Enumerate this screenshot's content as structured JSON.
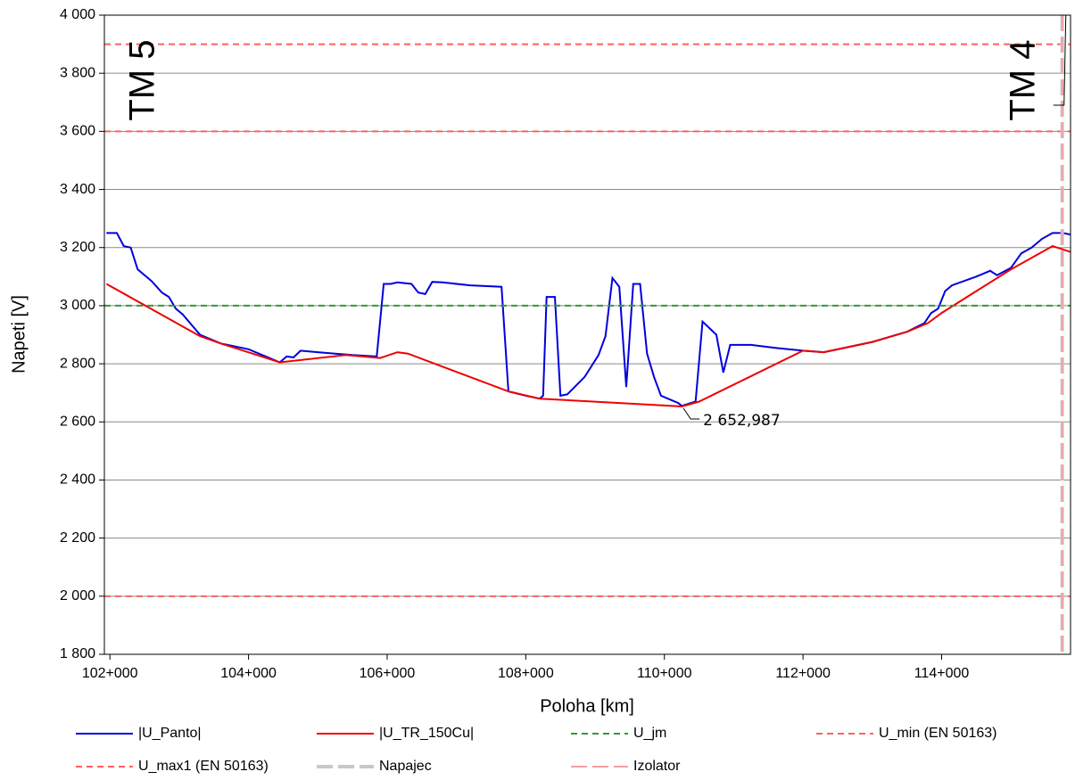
{
  "chart_data": {
    "type": "line",
    "xlabel": "Poloha [km]",
    "ylabel": "Napeti [V]",
    "xlim": [
      101.92,
      115.86
    ],
    "ylim": [
      1800,
      4000
    ],
    "xticks": [
      {
        "value": 102,
        "label": "102+000"
      },
      {
        "value": 104,
        "label": "104+000"
      },
      {
        "value": 106,
        "label": "106+000"
      },
      {
        "value": 108,
        "label": "108+000"
      },
      {
        "value": 110,
        "label": "110+000"
      },
      {
        "value": 112,
        "label": "112+000"
      },
      {
        "value": 114,
        "label": "114+000"
      }
    ],
    "yticks": [
      {
        "value": 1800,
        "label": "1 800"
      },
      {
        "value": 2000,
        "label": "2 000"
      },
      {
        "value": 2200,
        "label": "2 200"
      },
      {
        "value": 2400,
        "label": "2 400"
      },
      {
        "value": 2600,
        "label": "2 600"
      },
      {
        "value": 2800,
        "label": "2 800"
      },
      {
        "value": 3000,
        "label": "3 000"
      },
      {
        "value": 3200,
        "label": "3 200"
      },
      {
        "value": 3400,
        "label": "3 400"
      },
      {
        "value": 3600,
        "label": "3 600"
      },
      {
        "value": 3800,
        "label": "3 800"
      },
      {
        "value": 4000,
        "label": "4 000"
      }
    ],
    "grid": true,
    "legend": "bottom",
    "series": [
      {
        "name": "|U_Panto|",
        "color": "#0000dd",
        "style": "line",
        "x": [
          101.95,
          102.1,
          102.2,
          102.3,
          102.4,
          102.6,
          102.75,
          102.85,
          102.95,
          103.05,
          103.3,
          103.6,
          104,
          104.3,
          104.45,
          104.55,
          104.65,
          104.75,
          105,
          105.5,
          105.85,
          105.95,
          106.05,
          106.15,
          106.35,
          106.45,
          106.55,
          106.65,
          106.8,
          107.2,
          107.65,
          107.75,
          108.0,
          108.2,
          108.25,
          108.3,
          108.42,
          108.5,
          108.6,
          108.85,
          109.05,
          109.15,
          109.25,
          109.35,
          109.45,
          109.55,
          109.65,
          109.75,
          109.85,
          109.95,
          110.1,
          110.2,
          110.25,
          110.45,
          110.55,
          110.75,
          110.85,
          110.95,
          111.25,
          111.6,
          112.0,
          112.3,
          113.0,
          113.5,
          113.75,
          113.85,
          113.95,
          114.05,
          114.15,
          114.5,
          114.7,
          114.8,
          115.0,
          115.15,
          115.3,
          115.45,
          115.6,
          115.75,
          115.86
        ],
        "values": [
          3250,
          3250,
          3205,
          3200,
          3125,
          3085,
          3045,
          3030,
          2990,
          2970,
          2900,
          2870,
          2850,
          2820,
          2805,
          2825,
          2822,
          2845,
          2840,
          2830,
          2825,
          3075,
          3075,
          3080,
          3075,
          3045,
          3040,
          3082,
          3080,
          3070,
          3065,
          2705,
          2690,
          2680,
          2690,
          3030,
          3030,
          2690,
          2695,
          2755,
          2830,
          2895,
          3095,
          3065,
          2720,
          3075,
          3075,
          2835,
          2755,
          2690,
          2675,
          2665,
          2655,
          2670,
          2945,
          2900,
          2770,
          2865,
          2865,
          2855,
          2845,
          2840,
          2875,
          2910,
          2940,
          2975,
          2990,
          3050,
          3070,
          3100,
          3120,
          3105,
          3130,
          3180,
          3200,
          3230,
          3250,
          3250,
          3245
        ]
      },
      {
        "name": "|U_TR_150Cu|",
        "color": "#ee0000",
        "style": "line",
        "x": [
          101.95,
          103.3,
          103.6,
          104.45,
          105.4,
          105.9,
          106.15,
          106.3,
          107.75,
          108.2,
          110.25,
          110.5,
          112.0,
          112.3,
          113.0,
          113.5,
          113.8,
          114.0,
          114.5,
          115.0,
          115.6,
          115.86
        ],
        "values": [
          3075,
          2895,
          2870,
          2805,
          2830,
          2820,
          2840,
          2835,
          2705,
          2680,
          2653,
          2670,
          2845,
          2840,
          2875,
          2910,
          2940,
          2975,
          3050,
          3125,
          3205,
          3185
        ]
      },
      {
        "name": "U_jm",
        "color": "#339933",
        "style": "hline",
        "values": [
          3000
        ]
      },
      {
        "name": "U_min (EN 50163)",
        "color": "#ff6060",
        "style": "hline",
        "values": [
          2000
        ]
      },
      {
        "name": "U_max1 (EN 50163)",
        "color": "#ff6060",
        "style": "hline",
        "values": [
          3600
        ]
      },
      {
        "color": "#ff6060",
        "style": "hline",
        "values": [
          3900
        ]
      },
      {
        "name": "Napajec",
        "color": "#c8c8c8",
        "style": "vline",
        "x": [
          115.74
        ]
      },
      {
        "name": "Izolator",
        "color": "#f4a0a0",
        "style": "vline",
        "x": [
          115.74
        ]
      }
    ],
    "annotations": [
      {
        "text": "2 652,987",
        "x": 110.25,
        "y": 2652.987
      },
      {
        "text": "TM 5",
        "x": 102.5
      },
      {
        "text": "TM 4",
        "x": 115.2
      }
    ]
  }
}
